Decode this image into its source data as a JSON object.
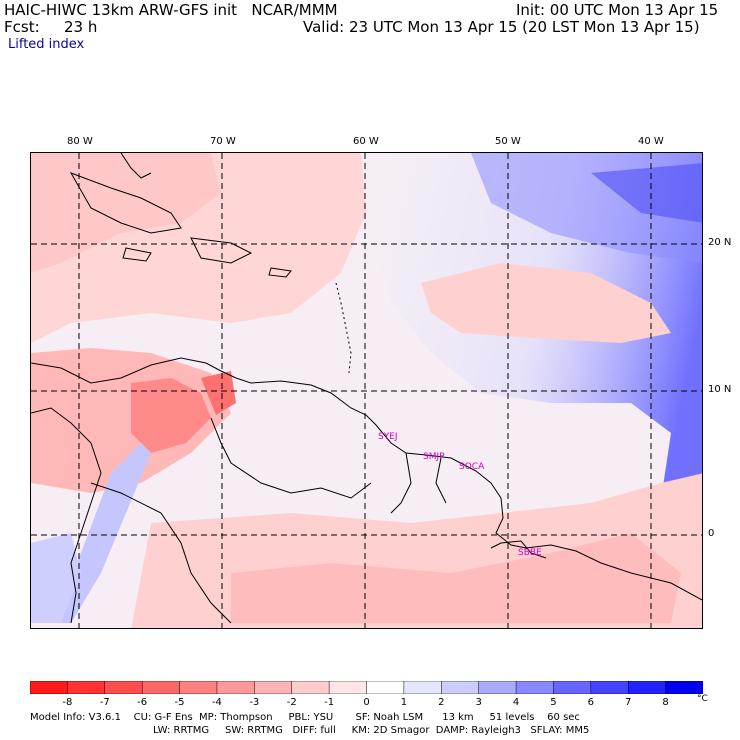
{
  "header": {
    "model_title": "HAIC-HIWC 13km ARW-GFS init   NCAR/MMM",
    "init_time": "Init: 00 UTC Mon 13 Apr 15",
    "fcst_label": "Fcst:",
    "fcst_value": "23 h",
    "valid_time": "Valid: 23 UTC Mon 13 Apr 15 (20 LST Mon 13 Apr 15)",
    "field_name": "Lifted index"
  },
  "map": {
    "lon_labels": [
      "80 W",
      "70 W",
      "60 W",
      "50 W",
      "40 W"
    ],
    "lat_labels": [
      "20 N",
      "10 N",
      "0"
    ],
    "stations": [
      "SYEJ",
      "SMJP",
      "SOCA",
      "SBBE"
    ],
    "colors": {
      "border": "#000000",
      "station": "#cc00cc"
    }
  },
  "colorbar": {
    "labels": [
      "-8",
      "-7",
      "-6",
      "-5",
      "-4",
      "-3",
      "-2",
      "-1",
      "0",
      "1",
      "2",
      "3",
      "4",
      "5",
      "6",
      "7",
      "8"
    ],
    "unit": "°C",
    "colors": [
      "#ff1a1a",
      "#ff3333",
      "#ff4d4d",
      "#ff6666",
      "#ff8080",
      "#ff9999",
      "#ffb3b3",
      "#ffcccc",
      "#ffe6e6",
      "#ffffff",
      "#e6e6ff",
      "#ccccff",
      "#aaaaff",
      "#8888ff",
      "#6666ff",
      "#4444ff",
      "#2222ff",
      "#0000ee"
    ]
  },
  "footer": {
    "line1": "Model Info: V3.6.1    CU: G-F Ens  MP: Thompson     PBL: YSU       SF: Noah LSM      13 km     51 levels    60 sec",
    "line2": "LW: RRTMG     SW: RRTMG   DIFF: full     KM: 2D Smagor  DAMP: Rayleigh3   SFLAY: MM5"
  }
}
